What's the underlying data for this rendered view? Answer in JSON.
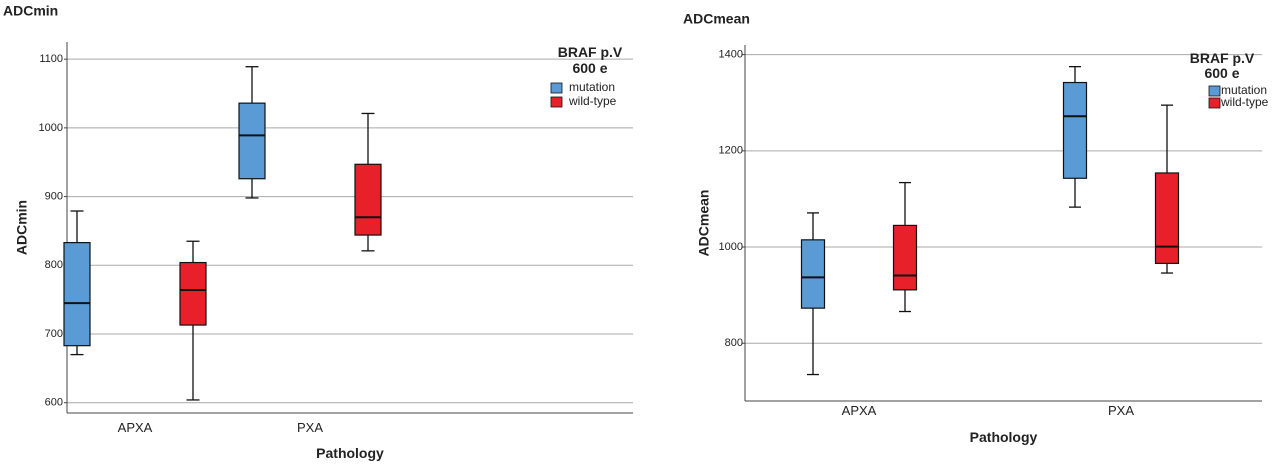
{
  "chart_data": [
    {
      "type": "box",
      "title": "ADCmin",
      "xlabel": "Pathology",
      "ylabel": "ADCmin",
      "ylim": [
        585,
        1125
      ],
      "yticks": [
        600,
        700,
        800,
        900,
        1000,
        1100
      ],
      "grid": true,
      "legend_position": "top-right",
      "legend_title": "BRAF p.V 600 e",
      "categories": [
        "APXA",
        "PXA"
      ],
      "series": [
        {
          "name": "mutation",
          "color": "#5b9bd5",
          "boxes": [
            {
              "min": 670,
              "q1": 683,
              "median": 745,
              "q3": 833,
              "max": 879
            },
            {
              "min": 898,
              "q1": 926,
              "median": 989,
              "q3": 1036,
              "max": 1089
            }
          ]
        },
        {
          "name": "wild-type",
          "color": "#e8202a",
          "boxes": [
            {
              "min": 604,
              "q1": 713,
              "median": 764,
              "q3": 804,
              "max": 835
            },
            {
              "min": 821,
              "q1": 844,
              "median": 870,
              "q3": 947,
              "max": 1021
            }
          ]
        }
      ]
    },
    {
      "type": "box",
      "title": "ADCmean",
      "xlabel": "Pathology",
      "ylabel": "ADCmean",
      "ylim": [
        680,
        1420
      ],
      "yticks": [
        800,
        1000,
        1200,
        1400
      ],
      "grid": true,
      "legend_position": "top-right",
      "legend_title": "BRAF p.V 600 e",
      "categories": [
        "APXA",
        "PXA"
      ],
      "series": [
        {
          "name": "mutation",
          "color": "#5b9bd5",
          "boxes": [
            {
              "min": 735,
              "q1": 873,
              "median": 937,
              "q3": 1015,
              "max": 1071
            },
            {
              "min": 1083,
              "q1": 1143,
              "median": 1272,
              "q3": 1342,
              "max": 1375
            }
          ]
        },
        {
          "name": "wild-type",
          "color": "#e8202a",
          "boxes": [
            {
              "min": 866,
              "q1": 911,
              "median": 941,
              "q3": 1045,
              "max": 1134
            },
            {
              "min": 946,
              "q1": 966,
              "median": 1001,
              "q3": 1154,
              "max": 1295
            }
          ]
        }
      ]
    }
  ]
}
